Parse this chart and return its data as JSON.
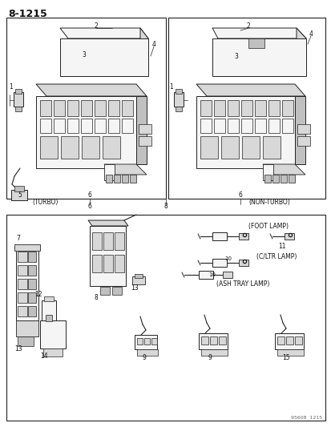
{
  "title": "8-1215",
  "bg_color": "#ffffff",
  "lc": "#222222",
  "tc": "#111111",
  "fig_width": 4.14,
  "fig_height": 5.33,
  "dpi": 100,
  "watermark": "95608  1215",
  "turbo_label": "(TURBO)",
  "nonturbo_label": "(NON-TURBO)",
  "foot_lamp": "(FOOT LAMP)",
  "cltr_lamp": "(C/LTR LAMP)",
  "ash_tray": "(ASH TRAY LAMP)"
}
